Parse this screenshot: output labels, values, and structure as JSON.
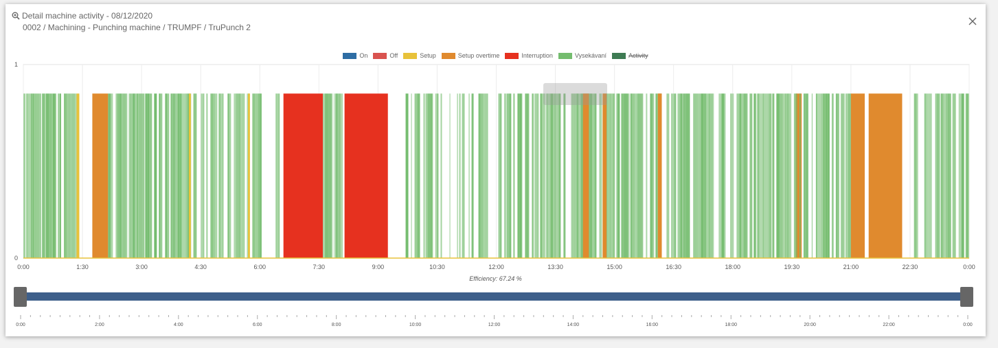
{
  "header": {
    "title": "Detail machine activity - 08/12/2020",
    "subtitle": "0002 / Machining - Punching machine / TRUMPF / TruPunch 2"
  },
  "legend": [
    {
      "label": "On",
      "color": "#2e6da4",
      "hidden": false
    },
    {
      "label": "Off",
      "color": "#d9534f",
      "hidden": false
    },
    {
      "label": "Setup",
      "color": "#e8c23a",
      "hidden": false
    },
    {
      "label": "Setup overtime",
      "color": "#e08a2e",
      "hidden": false
    },
    {
      "label": "Interruption",
      "color": "#e6311f",
      "hidden": false
    },
    {
      "label": "Vysekávaní",
      "color": "#74bc6e",
      "hidden": false
    },
    {
      "label": "Activity",
      "color": "#3e7b53",
      "hidden": true
    }
  ],
  "efficiency_label": "Efficiency: 67.24 %",
  "chart_data": {
    "type": "bar",
    "x_unit": "hours",
    "xlim": [
      0,
      24
    ],
    "ylim": [
      0,
      1
    ],
    "y_ticks": [
      "0",
      "1"
    ],
    "x_ticks": [
      "0:00",
      "1:30",
      "3:00",
      "4:30",
      "6:00",
      "7:30",
      "9:00",
      "10:30",
      "12:00",
      "13:30",
      "15:00",
      "16:30",
      "18:00",
      "19:30",
      "21:00",
      "22:30",
      "0:00"
    ],
    "bar_value": 0.85,
    "segments": [
      {
        "state": "Vysekávaní",
        "start": 0.0,
        "end": 1.35,
        "pattern": "dense"
      },
      {
        "state": "Setup",
        "start": 1.35,
        "end": 1.42,
        "pattern": "solid"
      },
      {
        "state": "Setup overtime",
        "start": 1.75,
        "end": 2.15,
        "pattern": "solid"
      },
      {
        "state": "Vysekávaní",
        "start": 2.15,
        "end": 6.05,
        "pattern": "dense"
      },
      {
        "state": "Setup",
        "start": 4.2,
        "end": 4.25,
        "pattern": "solid"
      },
      {
        "state": "Setup",
        "start": 5.7,
        "end": 5.75,
        "pattern": "solid"
      },
      {
        "state": "Vysekávaní",
        "start": 6.4,
        "end": 6.55,
        "pattern": "sparse"
      },
      {
        "state": "Interruption",
        "start": 6.6,
        "end": 7.6,
        "pattern": "solid"
      },
      {
        "state": "Vysekávaní",
        "start": 7.6,
        "end": 8.1,
        "pattern": "dense"
      },
      {
        "state": "Interruption",
        "start": 8.15,
        "end": 9.25,
        "pattern": "solid"
      },
      {
        "state": "Vysekávaní",
        "start": 9.7,
        "end": 11.8,
        "pattern": "sparse"
      },
      {
        "state": "Vysekávaní",
        "start": 12.05,
        "end": 19.1,
        "pattern": "dense"
      },
      {
        "state": "Setup overtime",
        "start": 14.2,
        "end": 14.35,
        "pattern": "solid"
      },
      {
        "state": "Setup overtime",
        "start": 14.7,
        "end": 14.8,
        "pattern": "solid"
      },
      {
        "state": "Setup overtime",
        "start": 16.1,
        "end": 16.2,
        "pattern": "solid"
      },
      {
        "state": "Setup overtime",
        "start": 19.6,
        "end": 19.75,
        "pattern": "solid"
      },
      {
        "state": "Vysekávaní",
        "start": 19.1,
        "end": 21.0,
        "pattern": "dense"
      },
      {
        "state": "Setup overtime",
        "start": 21.0,
        "end": 21.35,
        "pattern": "solid"
      },
      {
        "state": "Setup overtime",
        "start": 21.45,
        "end": 22.3,
        "pattern": "solid"
      },
      {
        "state": "Vysekávaní",
        "start": 22.6,
        "end": 24.0,
        "pattern": "dense"
      }
    ]
  },
  "slider": {
    "tick_labels": [
      "0:00",
      "2:00",
      "4:00",
      "6:00",
      "8:00",
      "10:00",
      "12:00",
      "14:00",
      "16:00",
      "18:00",
      "20:00",
      "22:00",
      "0:00"
    ]
  }
}
